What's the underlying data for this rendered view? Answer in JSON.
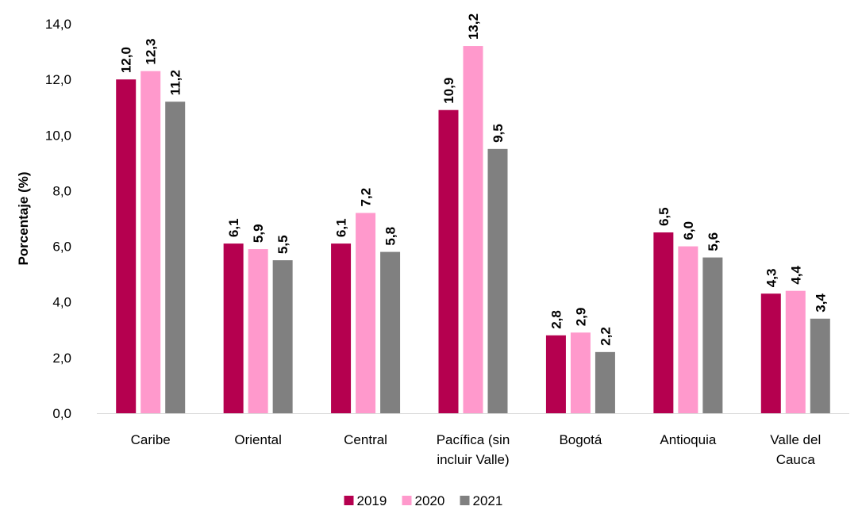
{
  "chart_data": {
    "type": "bar",
    "ylabel": "Porcentaje (%)",
    "ylim": [
      0,
      14
    ],
    "y_ticks": [
      "0,0",
      "2,0",
      "4,0",
      "6,0",
      "8,0",
      "10,0",
      "12,0",
      "14,0"
    ],
    "categories": [
      [
        "Caribe"
      ],
      [
        "Oriental"
      ],
      [
        "Central"
      ],
      [
        "Pacífica (sin",
        "incluir Valle)"
      ],
      [
        "Bogotá"
      ],
      [
        "Antioquia"
      ],
      [
        "Valle del",
        "Cauca"
      ]
    ],
    "series": [
      {
        "name": "2019",
        "color": "#b5004f",
        "values": [
          12.0,
          6.1,
          6.1,
          10.9,
          2.8,
          6.5,
          4.3
        ],
        "labels": [
          "12,0",
          "6,1",
          "6,1",
          "10,9",
          "2,8",
          "6,5",
          "4,3"
        ]
      },
      {
        "name": "2020",
        "color": "#ff99cc",
        "values": [
          12.3,
          5.9,
          7.2,
          13.2,
          2.9,
          6.0,
          4.4
        ],
        "labels": [
          "12,3",
          "5,9",
          "7,2",
          "13,2",
          "2,9",
          "6,0",
          "4,4"
        ]
      },
      {
        "name": "2021",
        "color": "#808080",
        "values": [
          11.2,
          5.5,
          5.8,
          9.5,
          2.2,
          5.6,
          3.4
        ],
        "labels": [
          "11,2",
          "5,5",
          "5,8",
          "9,5",
          "2,2",
          "5,6",
          "3,4"
        ]
      }
    ],
    "grid": false,
    "legend_position": "bottom"
  }
}
